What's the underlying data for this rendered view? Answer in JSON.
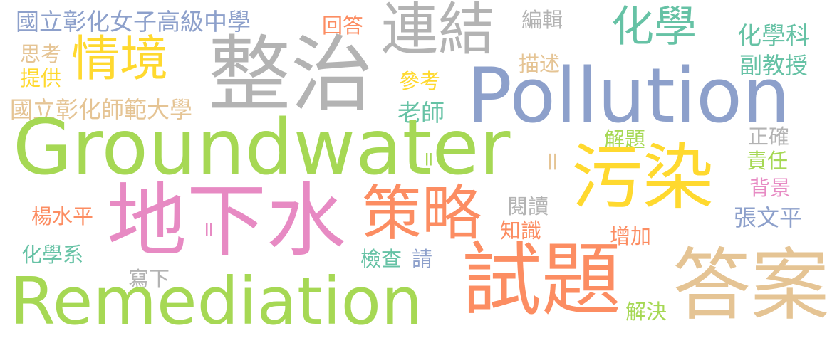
{
  "words": [
    {
      "text": "國立彰化女子高級中學",
      "color": "#8da0cb"
    },
    {
      "text": "回答",
      "color": "#fc8d62"
    },
    {
      "text": "連結",
      "color": "#b3b3b3"
    },
    {
      "text": "編輯",
      "color": "#b3b3b3"
    },
    {
      "text": "化學",
      "color": "#66c2a5"
    },
    {
      "text": "化學科",
      "color": "#66c2a5"
    },
    {
      "text": "思考",
      "color": "#e5c494"
    },
    {
      "text": "情境",
      "color": "#ffd92f"
    },
    {
      "text": "整治",
      "color": "#b3b3b3"
    },
    {
      "text": "描述",
      "color": "#e5c494"
    },
    {
      "text": "副教授",
      "color": "#66c2a5"
    },
    {
      "text": "提供",
      "color": "#ffd92f"
    },
    {
      "text": "參考",
      "color": "#ffd92f"
    },
    {
      "text": "Pollution",
      "color": "#8da0cb"
    },
    {
      "text": "國立彰化師範大學",
      "color": "#e5c494"
    },
    {
      "text": "老師",
      "color": "#66c2a5"
    },
    {
      "text": "Groundwater",
      "color": "#a6d854"
    },
    {
      "text": "解題",
      "color": "#a6d854"
    },
    {
      "text": "正確",
      "color": "#b3b3b3"
    },
    {
      "text": "責任",
      "color": "#a6d854"
    },
    {
      "text": "污染",
      "color": "#ffd92f"
    },
    {
      "text": "背景",
      "color": "#e78ac3"
    },
    {
      "text": "地下水",
      "color": "#e78ac3"
    },
    {
      "text": "策略",
      "color": "#fc8d62"
    },
    {
      "text": "閱讀",
      "color": "#b3b3b3"
    },
    {
      "text": "楊水平",
      "color": "#fc8d62"
    },
    {
      "text": "張文平",
      "color": "#8da0cb"
    },
    {
      "text": "知識",
      "color": "#fc8d62"
    },
    {
      "text": "增加",
      "color": "#fc8d62"
    },
    {
      "text": "化學系",
      "color": "#66c2a5"
    },
    {
      "text": "檢查",
      "color": "#66c2a5"
    },
    {
      "text": "請",
      "color": "#8da0cb"
    },
    {
      "text": "試題",
      "color": "#fc8d62"
    },
    {
      "text": "寫下",
      "color": "#b3b3b3"
    },
    {
      "text": "答案",
      "color": "#e5c494"
    },
    {
      "text": "Remediation",
      "color": "#a6d854"
    },
    {
      "text": "解決",
      "color": "#a6d854"
    },
    {
      "text": "=",
      "color": "#e5c494"
    },
    {
      "text": "=",
      "color": "#a6d854"
    },
    {
      "text": "=",
      "color": "#e78ac3"
    }
  ]
}
